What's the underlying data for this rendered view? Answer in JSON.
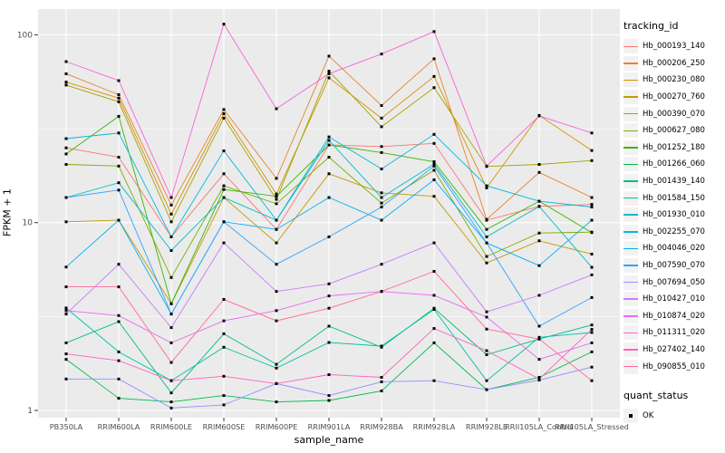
{
  "chart_data": {
    "type": "line",
    "title": "",
    "xlabel": "sample_name",
    "ylabel": "FPKM + 1",
    "y_scale": "log10",
    "y_ticks": [
      1,
      10,
      100
    ],
    "y_minor_ticks": [
      3.162,
      31.62
    ],
    "ylim": [
      0.92,
      140
    ],
    "grid": true,
    "panel_bg": "#EBEBEB",
    "grid_color": "#FFFFFF",
    "marker": "black-square",
    "legend_position": "right",
    "x_categories": [
      "PB350LA",
      "RRIM600LA",
      "RRIM600LE",
      "RRIM600SE",
      "RRIM600PE",
      "RRIM901LA",
      "RRIM928BA",
      "RRIM928LA",
      "RRIM928LE",
      "RRII105LA_Control",
      "RRII105LA_Stressed"
    ],
    "legend_title": "tracking_id",
    "series": [
      {
        "name": "Hb_000193_140",
        "color": "#F8766D",
        "values": [
          25,
          22.3,
          8.4,
          18.2,
          9.2,
          25.9,
          25.4,
          26.4,
          10.3,
          12.2,
          12.5
        ]
      },
      {
        "name": "Hb_000206_250",
        "color": "#EA8331",
        "values": [
          62,
          48,
          12.4,
          40,
          17.2,
          77,
          42,
          74.5,
          10.4,
          18.5,
          13.6
        ]
      },
      {
        "name": "Hb_000230_080",
        "color": "#D89000",
        "values": [
          56,
          46,
          11.1,
          38,
          14.2,
          59,
          36,
          60,
          15.3,
          37.2,
          24.2
        ]
      },
      {
        "name": "Hb_000270_760",
        "color": "#C09B00",
        "values": [
          10.1,
          10.3,
          3.7,
          13.6,
          7.8,
          18.2,
          14.4,
          13.8,
          6.1,
          8.0,
          6.8
        ]
      },
      {
        "name": "Hb_000390_070",
        "color": "#A3A500",
        "values": [
          54,
          44,
          10.1,
          36,
          13.3,
          64,
          32.4,
          52.3,
          19.9,
          20.4,
          21.4
        ]
      },
      {
        "name": "Hb_000627_080",
        "color": "#7CAE00",
        "values": [
          20.4,
          20,
          5.1,
          15.7,
          12.6,
          22.3,
          12.7,
          19,
          6.6,
          8.8,
          8.9
        ]
      },
      {
        "name": "Hb_001252_180",
        "color": "#39B600",
        "values": [
          23.2,
          36.8,
          3.7,
          15,
          13.8,
          25.9,
          23.6,
          21.1,
          9.2,
          13,
          8.85
        ]
      },
      {
        "name": "Hb_001266_060",
        "color": "#00BB4E",
        "values": [
          1.87,
          1.16,
          1.11,
          1.2,
          1.11,
          1.13,
          1.27,
          2.29,
          1.29,
          1.5,
          2.05
        ]
      },
      {
        "name": "Hb_001439_140",
        "color": "#00BF7D",
        "values": [
          2.29,
          2.97,
          1.24,
          2.56,
          1.76,
          2.81,
          2.17,
          3.5,
          1.98,
          2.4,
          2.85
        ]
      },
      {
        "name": "Hb_001584_150",
        "color": "#00C1A3",
        "values": [
          3.51,
          2.05,
          1.44,
          2.17,
          1.68,
          2.3,
          2.2,
          3.45,
          1.44,
          2.45,
          2.6
        ]
      },
      {
        "name": "Hb_001930_010",
        "color": "#00BFC4",
        "values": [
          13.6,
          16.3,
          7.1,
          13.6,
          10.3,
          27.4,
          13.6,
          20.5,
          8.4,
          12.2,
          5.78
        ]
      },
      {
        "name": "Hb_002255_070",
        "color": "#00BAE0",
        "values": [
          28,
          30,
          8.4,
          24.1,
          10.3,
          28.6,
          19.3,
          29.5,
          15.7,
          13,
          12.1
        ]
      },
      {
        "name": "Hb_004046_020",
        "color": "#00B0F6",
        "values": [
          5.8,
          10.3,
          3.26,
          10.1,
          9.2,
          13.6,
          10.3,
          16.9,
          7.8,
          5.9,
          10.3
        ]
      },
      {
        "name": "Hb_007590_070",
        "color": "#35A2FF",
        "values": [
          13.6,
          14.9,
          3.26,
          10.1,
          6.0,
          8.4,
          12.1,
          20,
          7.8,
          2.81,
          3.99
        ]
      },
      {
        "name": "Hb_007694_050",
        "color": "#9590FF",
        "values": [
          1.47,
          1.47,
          1.03,
          1.07,
          1.39,
          1.2,
          1.42,
          1.44,
          1.29,
          1.45,
          1.7
        ]
      },
      {
        "name": "Hb_010427_010",
        "color": "#C77CFF",
        "values": [
          3.26,
          6.0,
          2.76,
          7.8,
          4.3,
          4.72,
          6.0,
          7.8,
          3.35,
          4.1,
          5.27
        ]
      },
      {
        "name": "Hb_010874_020",
        "color": "#E76BF3",
        "values": [
          3.4,
          3.2,
          2.29,
          3.0,
          3.4,
          4.07,
          4.3,
          4.1,
          3.14,
          1.87,
          2.29
        ]
      },
      {
        "name": "Hb_011311_020",
        "color": "#FA62DB",
        "values": [
          72,
          57,
          13.6,
          114,
          40.4,
          62,
          79,
          104,
          20,
          37,
          30
        ]
      },
      {
        "name": "Hb_027402_140",
        "color": "#FF62BC",
        "values": [
          2.0,
          1.84,
          1.44,
          1.52,
          1.39,
          1.55,
          1.5,
          2.73,
          2.08,
          1.47,
          2.7
        ]
      },
      {
        "name": "Hb_090855_010",
        "color": "#FF6A98",
        "values": [
          4.55,
          4.55,
          1.8,
          3.9,
          3.0,
          3.5,
          4.3,
          5.5,
          2.71,
          2.4,
          1.44
        ]
      }
    ],
    "quant_legend": {
      "title": "quant_status",
      "items": [
        {
          "label": "OK"
        }
      ]
    }
  },
  "axes": {
    "xlabel": "sample_name",
    "ylabel": "FPKM + 1",
    "y_tick_labels": [
      "100",
      "10",
      "1"
    ]
  },
  "legend": {
    "tracking_title": "tracking_id",
    "quant_title": "quant_status",
    "quant_ok_label": "OK"
  }
}
